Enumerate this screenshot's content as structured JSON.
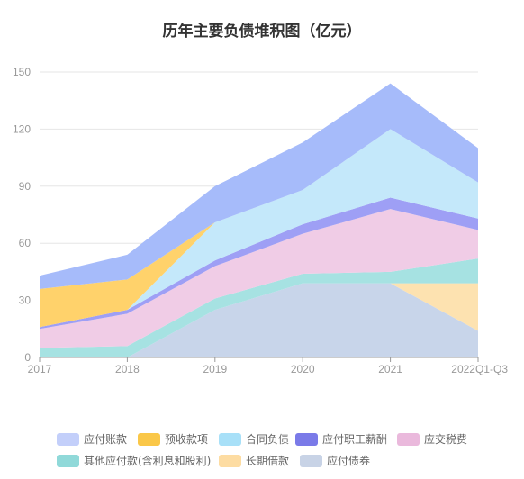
{
  "chart_data": {
    "type": "area",
    "stacked": true,
    "title": "历年主要负债堆积图（亿元）",
    "x": [
      "2017",
      "2018",
      "2019",
      "2020",
      "2021",
      "2022Q1-Q3"
    ],
    "ylim": [
      0,
      150
    ],
    "yticks": [
      0,
      30,
      60,
      90,
      120,
      150
    ],
    "grid": true,
    "legend_position": "bottom",
    "series": [
      {
        "name": "应付债券",
        "color": "#c8d5ea",
        "values": [
          0,
          0,
          25,
          39,
          39,
          14
        ]
      },
      {
        "name": "长期借款",
        "color": "#fde2b0",
        "values": [
          0,
          0,
          0,
          0,
          0,
          25
        ]
      },
      {
        "name": "其他应付款(含利息和股利)",
        "color": "#a6e2e2",
        "values": [
          5,
          6,
          6,
          5,
          6,
          13
        ]
      },
      {
        "name": "应交税费",
        "color": "#f0cce6",
        "values": [
          10,
          17,
          17,
          21,
          33,
          15
        ]
      },
      {
        "name": "应付职工薪酬",
        "color": "#9e9ff5",
        "values": [
          1,
          2,
          3,
          5,
          6,
          6
        ]
      },
      {
        "name": "合同负债",
        "color": "#c4e8fa",
        "values": [
          0,
          0,
          20,
          18,
          36,
          19
        ]
      },
      {
        "name": "预收款项",
        "color": "#ffd26b",
        "values": [
          20,
          16,
          0,
          0,
          0,
          0
        ]
      },
      {
        "name": "应付账款",
        "color": "#a6bbfa",
        "values": [
          7,
          13,
          19,
          25,
          24,
          18
        ]
      }
    ]
  },
  "legend": {
    "items": [
      {
        "name": "应付账款",
        "color": "#c3cffa"
      },
      {
        "name": "预收款项",
        "color": "#fac748"
      },
      {
        "name": "合同负债",
        "color": "#a8e0f8"
      },
      {
        "name": "应付职工薪酬",
        "color": "#7a7ae8"
      },
      {
        "name": "应交税费",
        "color": "#eab9dc"
      },
      {
        "name": "其他应付款(含利息和股利)",
        "color": "#90d9d9"
      },
      {
        "name": "长期借款",
        "color": "#fddca2"
      },
      {
        "name": "应付债券",
        "color": "#c8d3e6"
      }
    ]
  }
}
